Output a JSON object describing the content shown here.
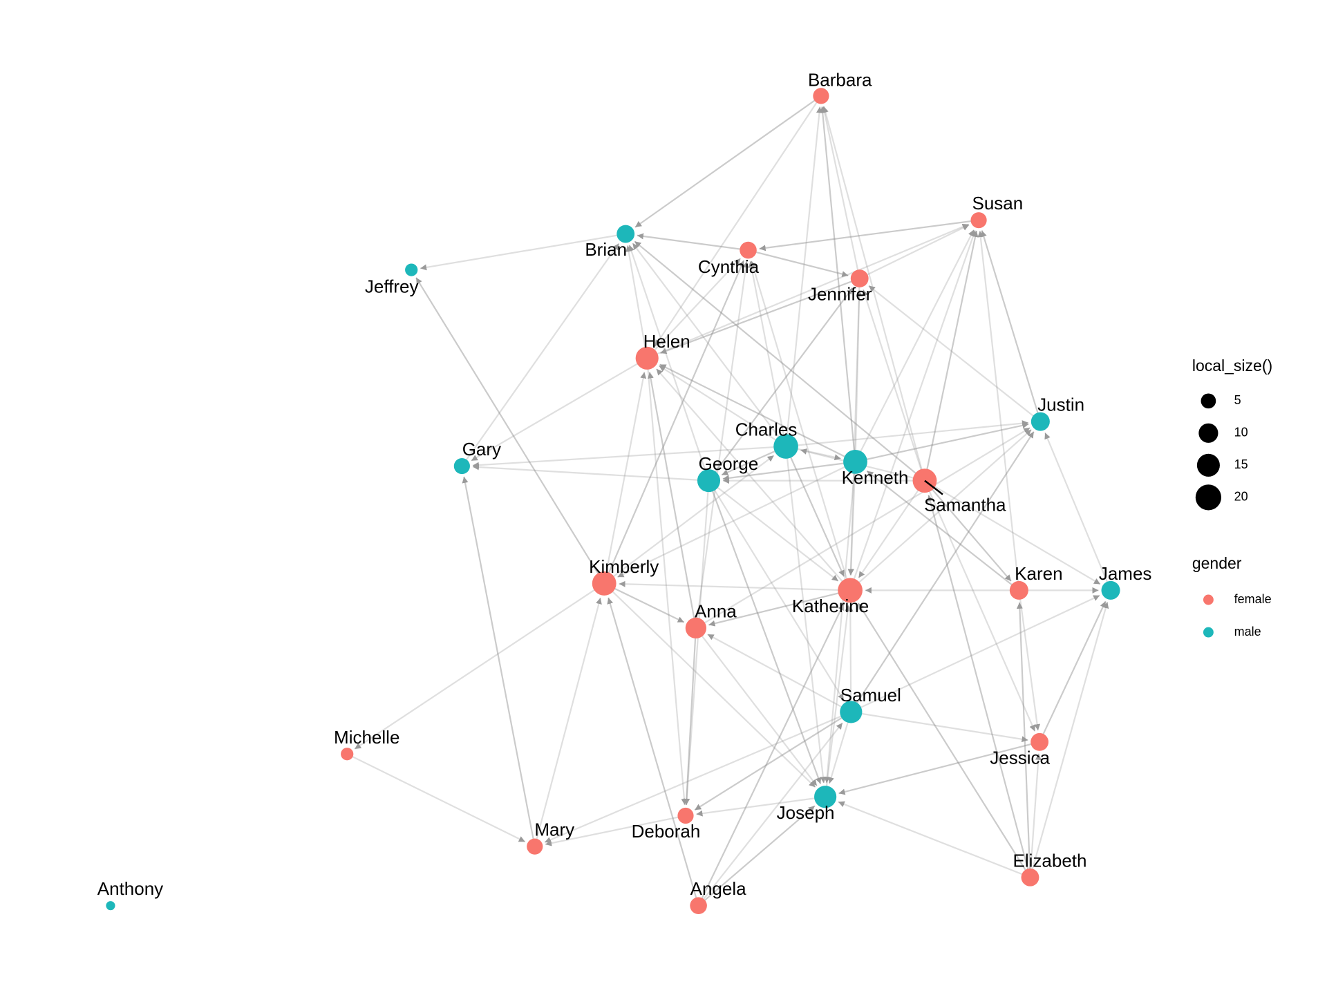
{
  "chart_data": {
    "type": "network",
    "nodes": [
      {
        "name": "Barbara",
        "gender": "female",
        "size": 6
      },
      {
        "name": "Susan",
        "gender": "female",
        "size": 6
      },
      {
        "name": "Brian",
        "gender": "male",
        "size": 8
      },
      {
        "name": "Cynthia",
        "gender": "female",
        "size": 7
      },
      {
        "name": "Jennifer",
        "gender": "female",
        "size": 8
      },
      {
        "name": "Jeffrey",
        "gender": "male",
        "size": 3
      },
      {
        "name": "Helen",
        "gender": "female",
        "size": 15
      },
      {
        "name": "Justin",
        "gender": "male",
        "size": 9
      },
      {
        "name": "Charles",
        "gender": "male",
        "size": 18
      },
      {
        "name": "Kenneth",
        "gender": "male",
        "size": 17
      },
      {
        "name": "Gary",
        "gender": "male",
        "size": 6
      },
      {
        "name": "George",
        "gender": "male",
        "size": 15
      },
      {
        "name": "Samantha",
        "gender": "female",
        "size": 17
      },
      {
        "name": "Kimberly",
        "gender": "female",
        "size": 17
      },
      {
        "name": "Katherine",
        "gender": "female",
        "size": 18
      },
      {
        "name": "Karen",
        "gender": "female",
        "size": 9
      },
      {
        "name": "James",
        "gender": "male",
        "size": 9
      },
      {
        "name": "Anna",
        "gender": "female",
        "size": 12
      },
      {
        "name": "Samuel",
        "gender": "male",
        "size": 14
      },
      {
        "name": "Michelle",
        "gender": "female",
        "size": 3
      },
      {
        "name": "Jessica",
        "gender": "female",
        "size": 8
      },
      {
        "name": "Joseph",
        "gender": "male",
        "size": 14
      },
      {
        "name": "Deborah",
        "gender": "female",
        "size": 6
      },
      {
        "name": "Mary",
        "gender": "female",
        "size": 6
      },
      {
        "name": "Elizabeth",
        "gender": "female",
        "size": 8
      },
      {
        "name": "Angela",
        "gender": "female",
        "size": 7
      },
      {
        "name": "Anthony",
        "gender": "male",
        "size": 1
      }
    ],
    "edges": [
      [
        "Barbara",
        "Brian"
      ],
      [
        "Barbara",
        "Helen"
      ],
      [
        "Jennifer",
        "Barbara"
      ],
      [
        "Kenneth",
        "Barbara"
      ],
      [
        "Samantha",
        "Barbara"
      ],
      [
        "Charles",
        "Barbara"
      ],
      [
        "Susan",
        "Cynthia"
      ],
      [
        "Jennifer",
        "Susan"
      ],
      [
        "Helen",
        "Susan"
      ],
      [
        "Justin",
        "Susan"
      ],
      [
        "Kenneth",
        "Susan"
      ],
      [
        "Katherine",
        "Susan"
      ],
      [
        "Samantha",
        "Susan"
      ],
      [
        "Karen",
        "Susan"
      ],
      [
        "Brian",
        "Jeffrey"
      ],
      [
        "Cynthia",
        "Brian"
      ],
      [
        "Helen",
        "Brian"
      ],
      [
        "Charles",
        "Brian"
      ],
      [
        "Samantha",
        "Brian"
      ],
      [
        "Gary",
        "Brian"
      ],
      [
        "George",
        "Brian"
      ],
      [
        "Cynthia",
        "Jennifer"
      ],
      [
        "Helen",
        "Cynthia"
      ],
      [
        "Anna",
        "Cynthia"
      ],
      [
        "Kimberly",
        "Cynthia"
      ],
      [
        "Charles",
        "Cynthia"
      ],
      [
        "Katherine",
        "Cynthia"
      ],
      [
        "Jennifer",
        "Helen"
      ],
      [
        "Samantha",
        "Jennifer"
      ],
      [
        "Justin",
        "Jennifer"
      ],
      [
        "George",
        "Jennifer"
      ],
      [
        "Kenneth",
        "Jennifer"
      ],
      [
        "Jennifer",
        "Katherine"
      ],
      [
        "Kimberly",
        "Jeffrey"
      ],
      [
        "Helen",
        "Gary"
      ],
      [
        "Charles",
        "Helen"
      ],
      [
        "Kenneth",
        "Helen"
      ],
      [
        "Katherine",
        "Helen"
      ],
      [
        "Helen",
        "Deborah"
      ],
      [
        "Anna",
        "Helen"
      ],
      [
        "Kimberly",
        "Helen"
      ],
      [
        "Charles",
        "Justin"
      ],
      [
        "Kenneth",
        "Justin"
      ],
      [
        "Katherine",
        "Justin"
      ],
      [
        "James",
        "Justin"
      ],
      [
        "Samuel",
        "Justin"
      ],
      [
        "Anna",
        "Justin"
      ],
      [
        "Charles",
        "Gary"
      ],
      [
        "Charles",
        "George"
      ],
      [
        "Charles",
        "Kenneth"
      ],
      [
        "Samantha",
        "Charles"
      ],
      [
        "Charles",
        "Katherine"
      ],
      [
        "Charles",
        "Joseph"
      ],
      [
        "Kimberly",
        "Charles"
      ],
      [
        "Kenneth",
        "George"
      ],
      [
        "Kenneth",
        "Katherine"
      ],
      [
        "Kenneth",
        "Joseph"
      ],
      [
        "Karen",
        "Kenneth"
      ],
      [
        "Kenneth",
        "Kimberly"
      ],
      [
        "George",
        "Gary"
      ],
      [
        "Mary",
        "Gary"
      ],
      [
        "Samantha",
        "George"
      ],
      [
        "George",
        "Katherine"
      ],
      [
        "George",
        "Joseph"
      ],
      [
        "George",
        "Deborah"
      ],
      [
        "George",
        "Samuel"
      ],
      [
        "Samantha",
        "Karen"
      ],
      [
        "Samantha",
        "James"
      ],
      [
        "Samantha",
        "Jessica"
      ],
      [
        "Elizabeth",
        "Samantha"
      ],
      [
        "Samantha",
        "Katherine"
      ],
      [
        "Katherine",
        "Kimberly"
      ],
      [
        "Kimberly",
        "Anna"
      ],
      [
        "Kimberly",
        "Michelle"
      ],
      [
        "Mary",
        "Kimberly"
      ],
      [
        "Angela",
        "Kimberly"
      ],
      [
        "Kimberly",
        "Joseph"
      ],
      [
        "Karen",
        "Katherine"
      ],
      [
        "Katherine",
        "Anna"
      ],
      [
        "Samuel",
        "Katherine"
      ],
      [
        "Joseph",
        "Katherine"
      ],
      [
        "Elizabeth",
        "Katherine"
      ],
      [
        "Karen",
        "James"
      ],
      [
        "Karen",
        "Jessica"
      ],
      [
        "Elizabeth",
        "Karen"
      ],
      [
        "Samuel",
        "James"
      ],
      [
        "Elizabeth",
        "James"
      ],
      [
        "Jessica",
        "James"
      ],
      [
        "Samuel",
        "Anna"
      ],
      [
        "Anna",
        "Joseph"
      ],
      [
        "Anna",
        "Deborah"
      ],
      [
        "Samuel",
        "Jessica"
      ],
      [
        "Samuel",
        "Joseph"
      ],
      [
        "Samuel",
        "Deborah"
      ],
      [
        "Samuel",
        "Mary"
      ],
      [
        "Michelle",
        "Mary"
      ],
      [
        "Jessica",
        "Joseph"
      ],
      [
        "Elizabeth",
        "Jessica"
      ],
      [
        "Joseph",
        "Deborah"
      ],
      [
        "Angela",
        "Joseph"
      ],
      [
        "Elizabeth",
        "Joseph"
      ],
      [
        "Deborah",
        "Mary"
      ],
      [
        "Angela",
        "Katherine"
      ],
      [
        "Angela",
        "Samuel"
      ]
    ],
    "size_legend": {
      "title": "local_size()",
      "breaks": [
        5,
        10,
        15,
        20
      ]
    },
    "gender_legend": {
      "title": "gender",
      "items": [
        {
          "label": "female",
          "color": "#F8766D"
        },
        {
          "label": "male",
          "color": "#1DB7BA"
        }
      ]
    },
    "edge_color": "#8c8c8c"
  }
}
